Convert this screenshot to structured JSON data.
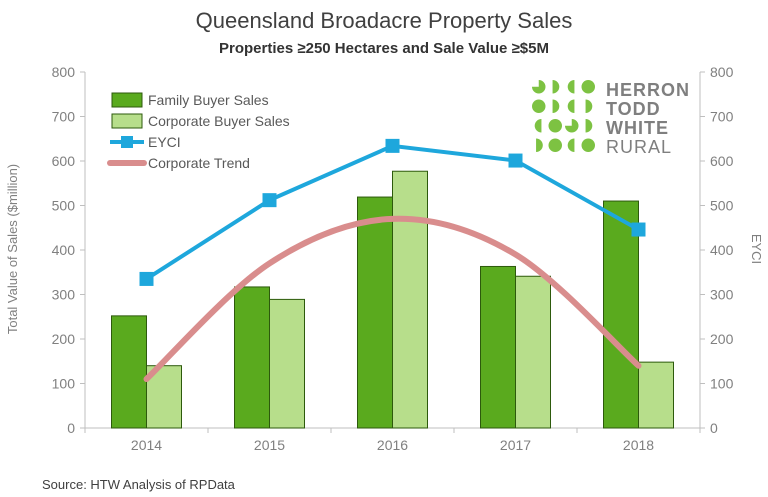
{
  "chart_data": {
    "type": "bar",
    "title": "Queensland Broadacre Property Sales",
    "subtitle": "Properties ≥250 Hectares and Sale Value ≥$5M",
    "categories": [
      "2014",
      "2015",
      "2016",
      "2017",
      "2018"
    ],
    "ylabel": "Total Value  of Sales ($million)",
    "y2label": "EYCI",
    "ylim": [
      0,
      800
    ],
    "y2lim": [
      0,
      800
    ],
    "yticks": [
      "0",
      "100",
      "200",
      "300",
      "400",
      "500",
      "600",
      "700",
      "800"
    ],
    "y2ticks": [
      "0",
      "100",
      "200",
      "300",
      "400",
      "500",
      "600",
      "700",
      "800"
    ],
    "grid": false,
    "legend_position": "top-left",
    "series": [
      {
        "name": "Family Buyer Sales",
        "kind": "bar",
        "color": "#5aaa1e",
        "values": [
          252,
          317,
          519,
          363,
          510
        ]
      },
      {
        "name": "Corporate Buyer Sales",
        "kind": "bar",
        "color": "#b7de8b",
        "values": [
          140,
          289,
          577,
          341,
          148
        ]
      },
      {
        "name": "EYCI",
        "kind": "line",
        "marker": "square",
        "axis": "right",
        "color": "#1ea7dc",
        "values": [
          335,
          512,
          634,
          601,
          446
        ]
      },
      {
        "name": "Corporate Trend",
        "kind": "trend",
        "color": "#d98d8d",
        "values": [
          110,
          370,
          470,
          390,
          140
        ]
      }
    ],
    "source": "Source: HTW Analysis of RPData"
  },
  "logo": {
    "lines": [
      "HERRON",
      "TODD",
      "WHITE",
      "RURAL"
    ],
    "green": "#7dc242",
    "gray": "#7f7f7f"
  }
}
